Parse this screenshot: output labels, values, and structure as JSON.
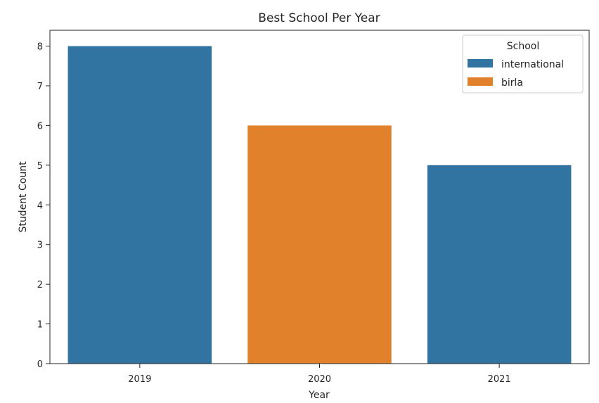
{
  "chart_data": {
    "type": "bar",
    "title": "Best School Per Year",
    "xlabel": "Year",
    "ylabel": "Student Count",
    "categories": [
      "2019",
      "2020",
      "2021"
    ],
    "values": [
      8,
      6,
      5
    ],
    "bar_school": [
      "international",
      "birla",
      "international"
    ],
    "ylim": [
      0,
      8.4
    ],
    "yticks": [
      0,
      1,
      2,
      3,
      4,
      5,
      6,
      7,
      8
    ],
    "grid": false,
    "legend": {
      "title": "School",
      "placement": "top-right",
      "entries": [
        {
          "name": "international",
          "color": "#3274a1"
        },
        {
          "name": "birla",
          "color": "#e1812c"
        }
      ]
    }
  }
}
